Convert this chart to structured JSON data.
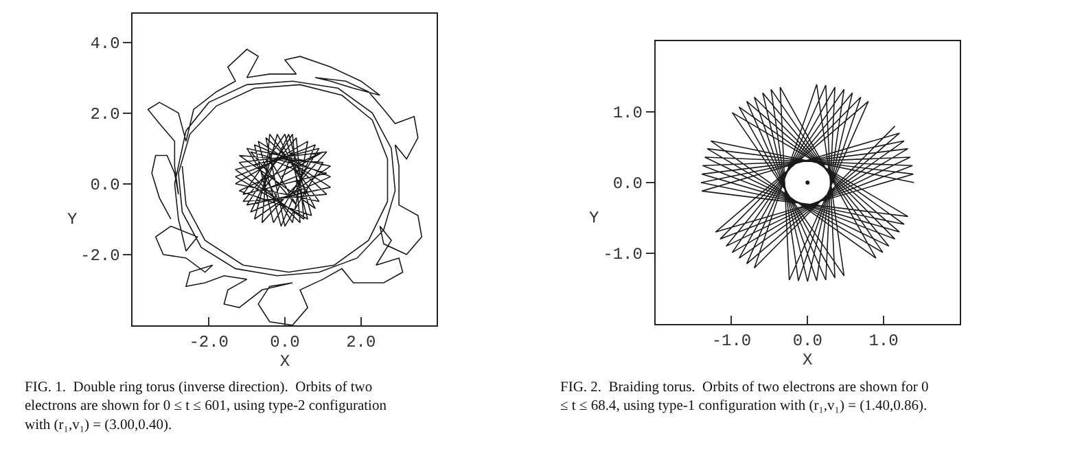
{
  "chart_data": [
    {
      "type": "line",
      "xlabel": "X",
      "ylabel": "Y",
      "xlim": [
        -4,
        4
      ],
      "ylim": [
        -4,
        4.8
      ],
      "xticks": [
        {
          "value": -2,
          "label": "-2.0"
        },
        {
          "value": 0,
          "label": "0.0"
        },
        {
          "value": 2,
          "label": "2.0"
        }
      ],
      "yticks": [
        {
          "value": 4,
          "label": "4.0"
        },
        {
          "value": 2,
          "label": "2.0"
        },
        {
          "value": 0,
          "label": "0.0"
        },
        {
          "value": -2,
          "label": "-2.0"
        }
      ],
      "annotations": [
        "FIG. 1.  Double ring torus (inverse direction).  Orbits of two electrons are shown for 0 ≤ t ≤ 601, using type-2 configuration with (r₁,v₁) = (3.00,0.40)."
      ],
      "series": [
        {
          "color": "#1a1a1a",
          "x": [
            -3.0,
            -3.3,
            -3.5,
            -3.4,
            -3.1,
            -2.9,
            -2.8,
            -2.9,
            -2.9,
            -3.3,
            -3.6,
            -3.3,
            -2.8,
            -2.6,
            -2.4,
            -1.8,
            -1.3,
            -1.5,
            -1.0,
            -0.7,
            -1.0,
            -0.4,
            0.3,
            0.0,
            0.4,
            1.2,
            2.0,
            2.5,
            1.8,
            1.2,
            0.8,
            1.6,
            2.2,
            2.6,
            2.9,
            3.4,
            3.5,
            3.2,
            2.9,
            3.0,
            3.0,
            3.0,
            3.5,
            3.6,
            3.2,
            2.6,
            2.5,
            2.8,
            2.4,
            3.0,
            3.1,
            2.6,
            1.8,
            1.5,
            1.0,
            0.4,
            0.6,
            0.2,
            -0.4,
            -0.7,
            -0.4,
            0.2,
            -0.6,
            -1.2,
            -1.6,
            -1.5,
            -1.0,
            -1.6,
            -2.1,
            -2.6,
            -2.5,
            -1.9,
            -2.1,
            -2.6,
            -3.2,
            -3.4,
            -3.0,
            -2.3,
            -2.6,
            -2.8,
            -2.9,
            -2.6,
            -2.0,
            -1.0,
            0.2,
            1.4,
            2.3,
            2.8,
            2.9,
            2.6,
            1.9,
            0.9,
            -0.2,
            -1.3,
            -2.2,
            -2.7,
            -2.8,
            -2.5,
            -1.8,
            -0.8,
            0.4,
            1.5,
            2.3,
            2.7,
            2.7,
            2.2,
            1.3,
            0.1,
            -1.1,
            -2.1,
            -2.6,
            -2.7
          ],
          "values": [
            -1.0,
            -0.4,
            0.3,
            0.8,
            0.8,
            0.3,
            -0.3,
            0.5,
            1.2,
            1.7,
            2.1,
            2.3,
            2.0,
            1.2,
            2.1,
            2.6,
            2.9,
            3.3,
            3.8,
            3.6,
            3.0,
            3.1,
            3.1,
            3.5,
            3.6,
            3.3,
            2.9,
            2.5,
            2.7,
            2.9,
            3.0,
            2.9,
            2.6,
            2.1,
            1.7,
            1.9,
            1.3,
            0.7,
            1.1,
            0.5,
            -0.1,
            -0.6,
            -0.9,
            -1.5,
            -2.0,
            -1.7,
            -1.2,
            -1.6,
            -2.3,
            -2.1,
            -2.5,
            -2.8,
            -2.8,
            -2.4,
            -2.7,
            -3.0,
            -3.5,
            -4.0,
            -3.9,
            -3.4,
            -2.9,
            -2.8,
            -3.0,
            -3.5,
            -3.4,
            -3.0,
            -2.7,
            -2.6,
            -2.8,
            -2.9,
            -2.5,
            -2.3,
            -2.5,
            -2.1,
            -2.0,
            -1.5,
            -1.2,
            -1.5,
            -1.9,
            -1.0,
            0.0,
            1.5,
            2.3,
            2.8,
            2.9,
            2.7,
            2.0,
            1.0,
            -0.2,
            -1.3,
            -2.1,
            -2.5,
            -2.6,
            -2.4,
            -1.8,
            -0.8,
            0.3,
            1.4,
            2.2,
            2.7,
            2.8,
            2.5,
            1.8,
            0.7,
            -0.5,
            -1.6,
            -2.3,
            -2.5,
            -2.3,
            -1.6,
            -0.6,
            0.5
          ]
        },
        {
          "color": "#1a1a1a",
          "x": [
            -0.1,
            1.0,
            -1.2,
            0.7,
            0.1,
            -0.9,
            1.2,
            -0.8,
            -0.3,
            0.9,
            -1.3,
            0.5,
            0.3,
            -1.1,
            1.1,
            -0.5,
            0.0,
            1.0,
            -1.2,
            0.8,
            -0.2,
            -0.8,
            1.2,
            -1.0,
            0.2,
            0.6,
            -1.3,
            0.9,
            -0.4,
            -0.6,
            1.1,
            -1.2,
            0.4,
            0.2,
            -1.0,
            1.2,
            -0.7,
            -0.1,
            0.8,
            -1.3,
            0.6,
            0.0,
            -1.1,
            1.1,
            -0.9,
            0.3,
            -0.4,
            0.5,
            -0.6,
            0.2,
            -0.3,
            0.6
          ],
          "values": [
            0.2,
            0.9,
            -0.2,
            -0.9,
            1.4,
            -0.8,
            0.2,
            1.1,
            -1.1,
            1.0,
            0.4,
            -1.0,
            1.3,
            -0.5,
            -0.3,
            1.3,
            -1.2,
            0.6,
            0.8,
            -0.7,
            1.4,
            -1.0,
            0.5,
            1.0,
            -1.1,
            1.2,
            0.0,
            -0.5,
            1.4,
            -1.1,
            0.9,
            0.6,
            -1.1,
            1.4,
            -0.6,
            -0.1,
            1.2,
            -1.2,
            1.1,
            0.2,
            -1.0,
            1.4,
            -0.3,
            0.3,
            0.9,
            -0.6,
            0.7,
            0.3,
            -0.2,
            0.9,
            -0.5,
            -0.2
          ]
        }
      ]
    },
    {
      "type": "line",
      "xlabel": "X",
      "ylabel": "Y",
      "xlim": [
        -2,
        2
      ],
      "ylim": [
        -2,
        2
      ],
      "xticks": [
        {
          "value": -1,
          "label": "-1.0"
        },
        {
          "value": 0,
          "label": "0.0"
        },
        {
          "value": 1,
          "label": "1.0"
        }
      ],
      "yticks": [
        {
          "value": 1,
          "label": "1.0"
        },
        {
          "value": 0,
          "label": "0.0"
        },
        {
          "value": -1,
          "label": "-1.0"
        }
      ],
      "annotations": [
        "FIG. 2.  Braiding torus.  Orbits of two electrons are shown for 0 ≤ t ≤ 68.4, using type-1 configuration with (r₁,v₁) = (1.40,0.86)."
      ],
      "series": [
        {
          "color": "#1a1a1a",
          "x": [
            1.4,
            -1.27,
            0.9,
            -0.36,
            -0.24,
            0.8,
            -1.21,
            1.39,
            -1.32,
            0.99,
            -0.48,
            -0.12,
            0.7,
            -1.15,
            1.38,
            -1.35,
            1.07,
            -0.59,
            0.0,
            0.59,
            -1.07,
            1.35,
            -1.38,
            1.15,
            -0.7,
            0.12,
            0.48,
            -0.99,
            1.32,
            -1.39,
            1.21,
            -0.8,
            0.24,
            0.36,
            -0.9,
            1.27,
            -1.4,
            1.27,
            -0.9,
            0.36,
            0.24,
            -0.8,
            1.21,
            -1.39,
            1.32,
            -0.99,
            0.48,
            0.12,
            -0.7,
            1.15
          ],
          "values": [
            0.0,
            0.59,
            -1.07,
            1.35,
            -1.38,
            1.15,
            -0.7,
            0.12,
            0.48,
            -0.99,
            1.32,
            -1.39,
            1.21,
            -0.8,
            0.24,
            0.36,
            -0.9,
            1.27,
            -1.4,
            1.27,
            -0.9,
            0.36,
            0.24,
            -0.8,
            1.21,
            -1.39,
            1.32,
            -0.99,
            0.48,
            0.12,
            -0.7,
            1.15,
            -1.38,
            1.35,
            -1.07,
            0.59,
            0.0,
            -0.59,
            1.07,
            -1.35,
            1.38,
            -1.15,
            0.7,
            -0.12,
            -0.48,
            0.99,
            -1.32,
            1.39,
            -1.21,
            0.8
          ]
        },
        {
          "type": "scatter",
          "marker": "circle",
          "color": "#1a1a1a",
          "x": [
            0.0
          ],
          "values": [
            0.0
          ]
        }
      ]
    }
  ]
}
